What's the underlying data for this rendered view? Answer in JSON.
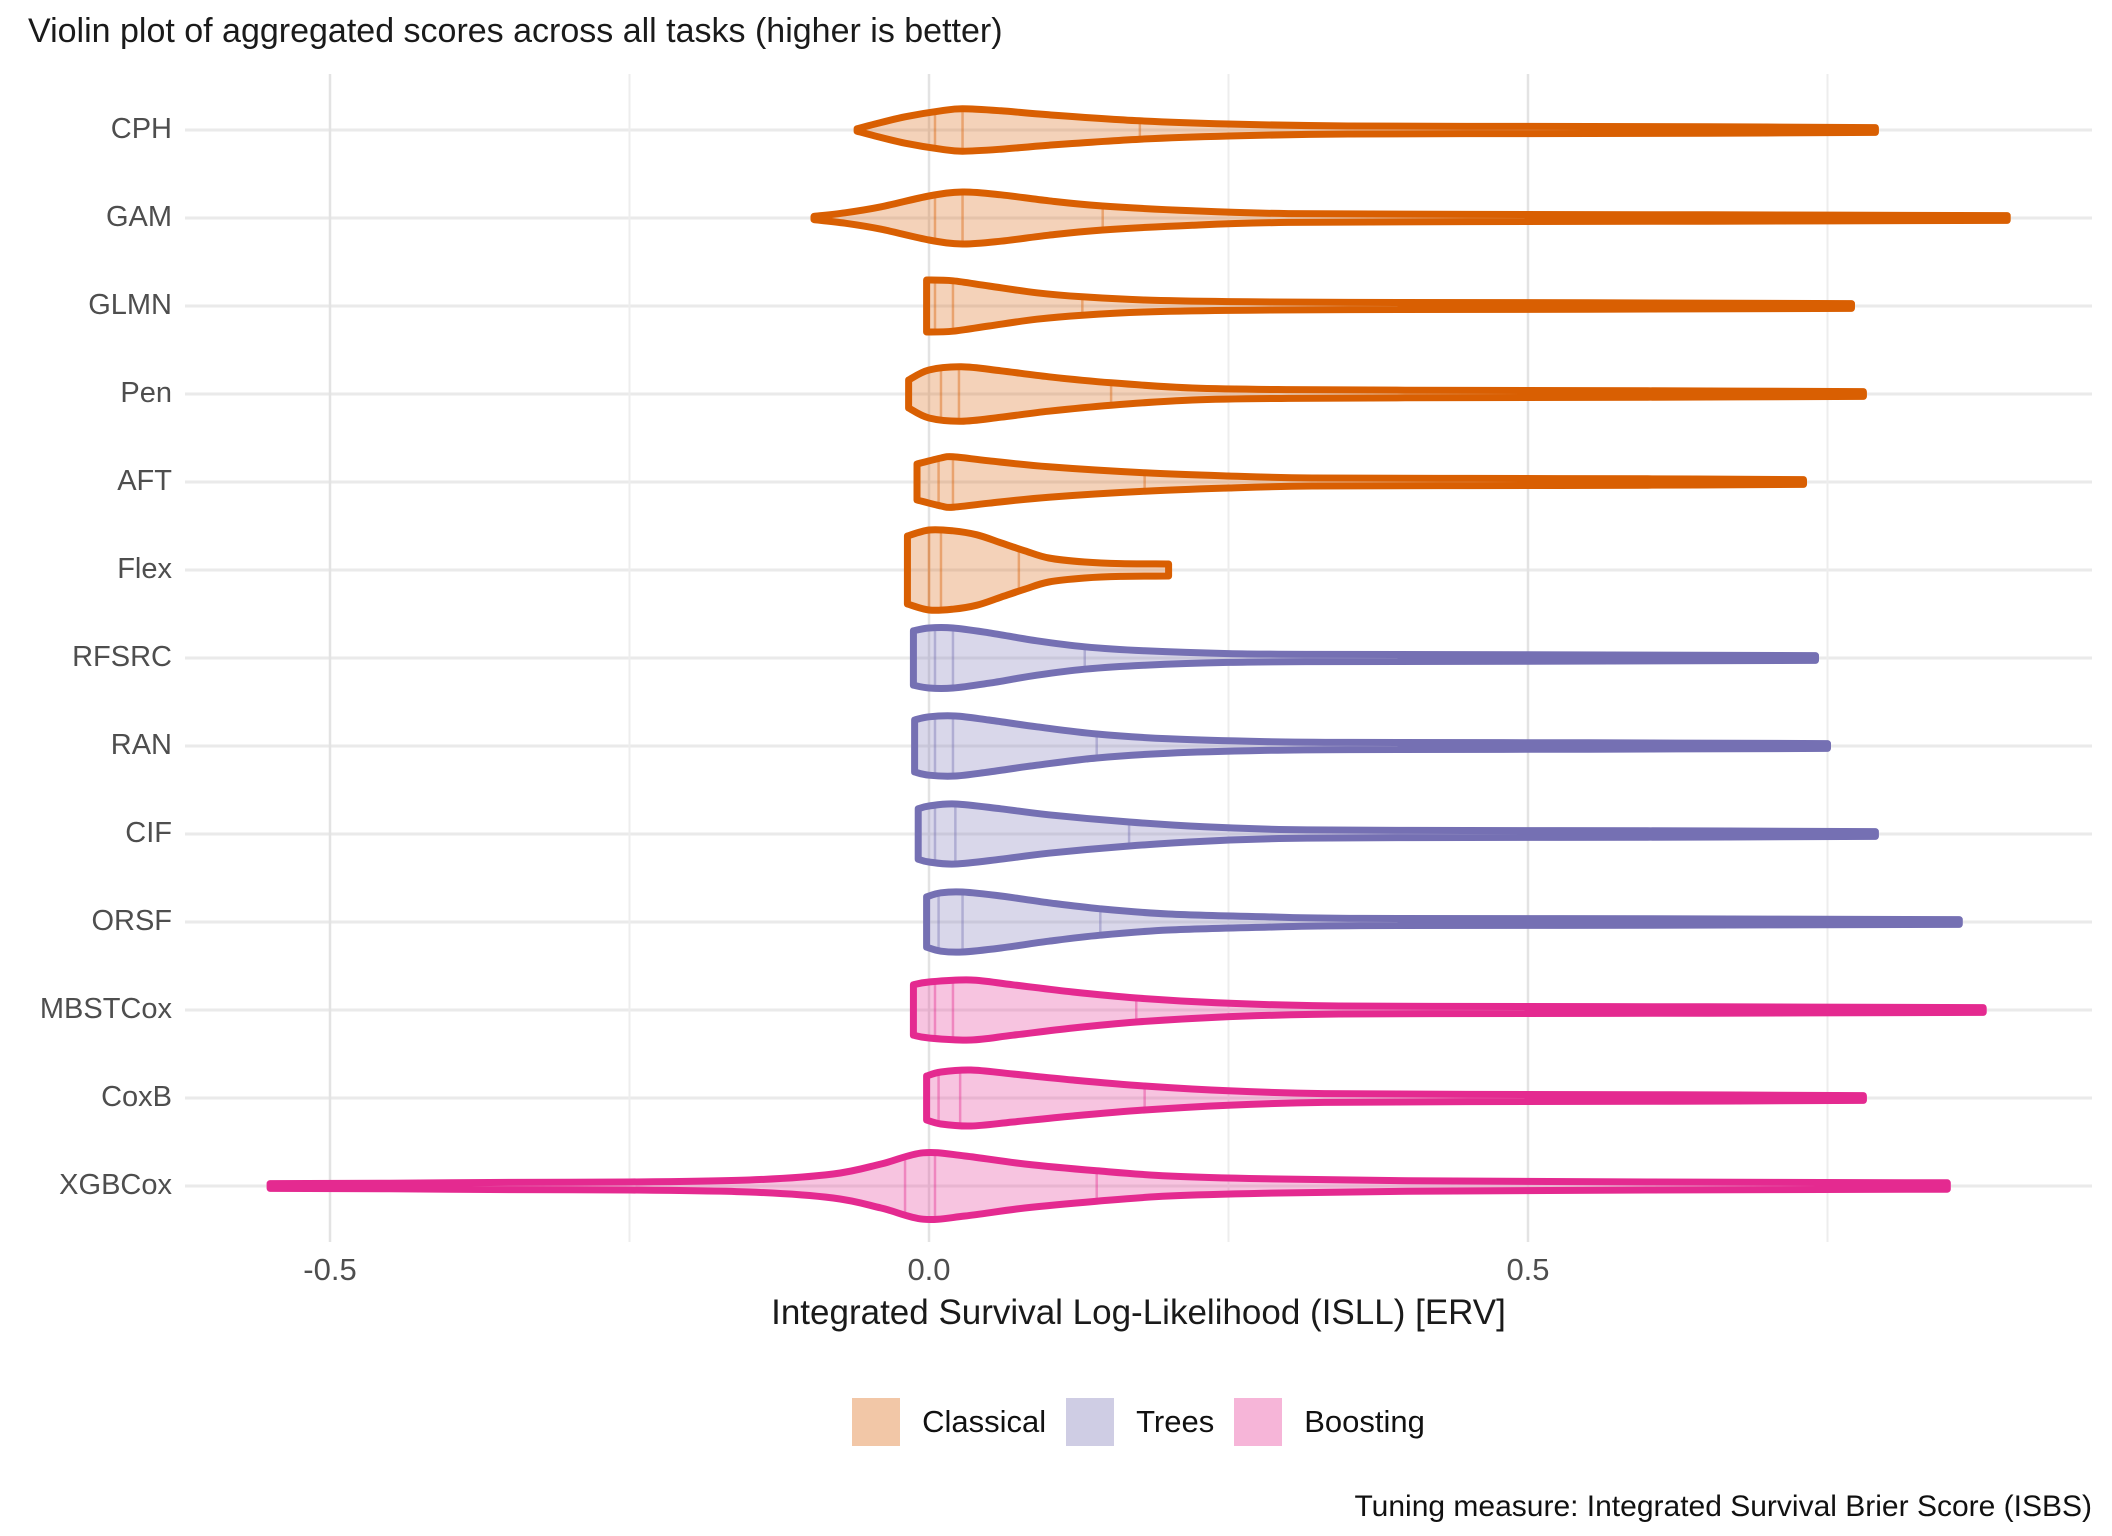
{
  "chart_data": {
    "type": "violin",
    "orientation": "horizontal",
    "title": "Violin plot of aggregated scores across all tasks (higher is better)",
    "xlabel": "Integrated Survival Log-Likelihood (ISLL) [ERV]",
    "footer": "Tuning measure: Integrated Survival Brier Score (ISBS)",
    "x_axis": {
      "range": [
        -0.62,
        0.97
      ],
      "major_ticks": [
        {
          "value": -0.5,
          "label": "-0.5"
        },
        {
          "value": 0.0,
          "label": "0.0"
        },
        {
          "value": 0.5,
          "label": "0.5"
        }
      ],
      "minor_ticks": [
        -0.25,
        0.25,
        0.75
      ],
      "grid_major_color": "#e3e3e3",
      "grid_minor_color": "#ededed",
      "grid_row_color": "#eaeaea"
    },
    "groups": {
      "Classical": {
        "label": "Classical",
        "color": "#D95F02",
        "fill_alpha": 0.28
      },
      "Trees": {
        "label": "Trees",
        "color": "#7570B3",
        "fill_alpha": 0.28
      },
      "Boosting": {
        "label": "Boosting",
        "color": "#E42A90",
        "fill_alpha": 0.28
      }
    },
    "legend_order": [
      "Classical",
      "Trees",
      "Boosting"
    ],
    "models": [
      {
        "name": "CPH",
        "group": "Classical",
        "min": -0.06,
        "max": 0.79,
        "quantiles": [
          0.005,
          0.028,
          0.176
        ],
        "profile": [
          [
            -0.06,
            0.03
          ],
          [
            -0.045,
            0.15
          ],
          [
            -0.02,
            0.33
          ],
          [
            0.01,
            0.48
          ],
          [
            0.028,
            0.53
          ],
          [
            0.06,
            0.48
          ],
          [
            0.1,
            0.38
          ],
          [
            0.176,
            0.23
          ],
          [
            0.25,
            0.15
          ],
          [
            0.35,
            0.1
          ],
          [
            0.5,
            0.09
          ],
          [
            0.65,
            0.08
          ],
          [
            0.79,
            0.06
          ]
        ]
      },
      {
        "name": "GAM",
        "group": "Classical",
        "min": -0.096,
        "max": 0.9,
        "quantiles": [
          0.005,
          0.028,
          0.145
        ],
        "profile": [
          [
            -0.096,
            0.04
          ],
          [
            -0.07,
            0.13
          ],
          [
            -0.04,
            0.28
          ],
          [
            0.0,
            0.55
          ],
          [
            0.028,
            0.65
          ],
          [
            0.06,
            0.58
          ],
          [
            0.1,
            0.43
          ],
          [
            0.145,
            0.3
          ],
          [
            0.22,
            0.18
          ],
          [
            0.3,
            0.11
          ],
          [
            0.45,
            0.09
          ],
          [
            0.65,
            0.08
          ],
          [
            0.9,
            0.06
          ]
        ]
      },
      {
        "name": "GLMN",
        "group": "Classical",
        "min": -0.002,
        "max": 0.77,
        "quantiles": [
          0.005,
          0.02,
          0.128
        ],
        "profile": [
          [
            -0.002,
            0.65
          ],
          [
            0.02,
            0.63
          ],
          [
            0.05,
            0.5
          ],
          [
            0.09,
            0.33
          ],
          [
            0.128,
            0.23
          ],
          [
            0.18,
            0.15
          ],
          [
            0.25,
            0.11
          ],
          [
            0.35,
            0.09
          ],
          [
            0.55,
            0.08
          ],
          [
            0.77,
            0.06
          ]
        ]
      },
      {
        "name": "Pen",
        "group": "Classical",
        "min": -0.017,
        "max": 0.78,
        "quantiles": [
          0.01,
          0.025,
          0.152
        ],
        "profile": [
          [
            -0.017,
            0.35
          ],
          [
            0.0,
            0.6
          ],
          [
            0.027,
            0.68
          ],
          [
            0.06,
            0.58
          ],
          [
            0.1,
            0.43
          ],
          [
            0.152,
            0.28
          ],
          [
            0.22,
            0.15
          ],
          [
            0.3,
            0.11
          ],
          [
            0.45,
            0.09
          ],
          [
            0.6,
            0.08
          ],
          [
            0.78,
            0.06
          ]
        ]
      },
      {
        "name": "AFT",
        "group": "Classical",
        "min": -0.01,
        "max": 0.73,
        "quantiles": [
          0.008,
          0.02,
          0.18
        ],
        "profile": [
          [
            -0.01,
            0.45
          ],
          [
            0.01,
            0.6
          ],
          [
            0.02,
            0.63
          ],
          [
            0.05,
            0.53
          ],
          [
            0.1,
            0.38
          ],
          [
            0.18,
            0.23
          ],
          [
            0.25,
            0.15
          ],
          [
            0.32,
            0.1
          ],
          [
            0.45,
            0.09
          ],
          [
            0.6,
            0.08
          ],
          [
            0.73,
            0.06
          ]
        ]
      },
      {
        "name": "Flex",
        "group": "Classical",
        "min": -0.018,
        "max": 0.2,
        "quantiles": [
          0.0,
          0.01,
          0.075
        ],
        "profile": [
          [
            -0.018,
            0.85
          ],
          [
            0.0,
            1.0
          ],
          [
            0.02,
            0.98
          ],
          [
            0.04,
            0.88
          ],
          [
            0.06,
            0.68
          ],
          [
            0.08,
            0.48
          ],
          [
            0.1,
            0.3
          ],
          [
            0.13,
            0.2
          ],
          [
            0.16,
            0.16
          ],
          [
            0.2,
            0.15
          ]
        ]
      },
      {
        "name": "RFSRC",
        "group": "Trees",
        "min": -0.013,
        "max": 0.74,
        "quantiles": [
          0.005,
          0.02,
          0.13
        ],
        "profile": [
          [
            -0.013,
            0.68
          ],
          [
            0.0,
            0.75
          ],
          [
            0.02,
            0.75
          ],
          [
            0.05,
            0.63
          ],
          [
            0.09,
            0.43
          ],
          [
            0.13,
            0.28
          ],
          [
            0.18,
            0.18
          ],
          [
            0.25,
            0.11
          ],
          [
            0.32,
            0.09
          ],
          [
            0.5,
            0.08
          ],
          [
            0.74,
            0.06
          ]
        ]
      },
      {
        "name": "RAN",
        "group": "Trees",
        "min": -0.012,
        "max": 0.75,
        "quantiles": [
          0.005,
          0.02,
          0.14
        ],
        "profile": [
          [
            -0.012,
            0.65
          ],
          [
            0.0,
            0.73
          ],
          [
            0.022,
            0.75
          ],
          [
            0.05,
            0.65
          ],
          [
            0.09,
            0.48
          ],
          [
            0.14,
            0.3
          ],
          [
            0.2,
            0.18
          ],
          [
            0.28,
            0.11
          ],
          [
            0.35,
            0.09
          ],
          [
            0.55,
            0.08
          ],
          [
            0.75,
            0.06
          ]
        ]
      },
      {
        "name": "CIF",
        "group": "Trees",
        "min": -0.009,
        "max": 0.79,
        "quantiles": [
          0.005,
          0.022,
          0.167
        ],
        "profile": [
          [
            -0.009,
            0.63
          ],
          [
            0.0,
            0.7
          ],
          [
            0.022,
            0.75
          ],
          [
            0.06,
            0.63
          ],
          [
            0.1,
            0.48
          ],
          [
            0.167,
            0.3
          ],
          [
            0.23,
            0.18
          ],
          [
            0.3,
            0.11
          ],
          [
            0.4,
            0.09
          ],
          [
            0.6,
            0.08
          ],
          [
            0.79,
            0.06
          ]
        ]
      },
      {
        "name": "ORSF",
        "group": "Trees",
        "min": -0.002,
        "max": 0.86,
        "quantiles": [
          0.008,
          0.028,
          0.143
        ],
        "profile": [
          [
            -0.002,
            0.63
          ],
          [
            0.01,
            0.73
          ],
          [
            0.028,
            0.75
          ],
          [
            0.06,
            0.65
          ],
          [
            0.1,
            0.48
          ],
          [
            0.143,
            0.33
          ],
          [
            0.2,
            0.2
          ],
          [
            0.28,
            0.13
          ],
          [
            0.36,
            0.09
          ],
          [
            0.6,
            0.08
          ],
          [
            0.86,
            0.06
          ]
        ]
      },
      {
        "name": "MBSTCox",
        "group": "Boosting",
        "min": -0.013,
        "max": 0.88,
        "quantiles": [
          0.005,
          0.02,
          0.173
        ],
        "profile": [
          [
            -0.013,
            0.63
          ],
          [
            0.0,
            0.7
          ],
          [
            0.035,
            0.75
          ],
          [
            0.07,
            0.63
          ],
          [
            0.12,
            0.45
          ],
          [
            0.173,
            0.3
          ],
          [
            0.24,
            0.18
          ],
          [
            0.32,
            0.11
          ],
          [
            0.42,
            0.09
          ],
          [
            0.65,
            0.08
          ],
          [
            0.88,
            0.06
          ]
        ]
      },
      {
        "name": "CoxB",
        "group": "Boosting",
        "min": -0.002,
        "max": 0.78,
        "quantiles": [
          0.008,
          0.026,
          0.18
        ],
        "profile": [
          [
            -0.002,
            0.55
          ],
          [
            0.01,
            0.65
          ],
          [
            0.035,
            0.7
          ],
          [
            0.07,
            0.6
          ],
          [
            0.12,
            0.45
          ],
          [
            0.18,
            0.3
          ],
          [
            0.25,
            0.18
          ],
          [
            0.33,
            0.11
          ],
          [
            0.45,
            0.09
          ],
          [
            0.62,
            0.08
          ],
          [
            0.78,
            0.06
          ]
        ]
      },
      {
        "name": "XGBCox",
        "group": "Boosting",
        "min": -0.55,
        "max": 0.85,
        "quantiles": [
          -0.02,
          0.005,
          0.14
        ],
        "profile": [
          [
            -0.55,
            0.06
          ],
          [
            -0.45,
            0.07
          ],
          [
            -0.35,
            0.09
          ],
          [
            -0.25,
            0.1
          ],
          [
            -0.15,
            0.15
          ],
          [
            -0.08,
            0.3
          ],
          [
            -0.04,
            0.55
          ],
          [
            -0.005,
            0.83
          ],
          [
            0.03,
            0.75
          ],
          [
            0.08,
            0.55
          ],
          [
            0.14,
            0.38
          ],
          [
            0.2,
            0.25
          ],
          [
            0.28,
            0.18
          ],
          [
            0.4,
            0.13
          ],
          [
            0.6,
            0.1
          ],
          [
            0.85,
            0.08
          ]
        ]
      }
    ]
  }
}
